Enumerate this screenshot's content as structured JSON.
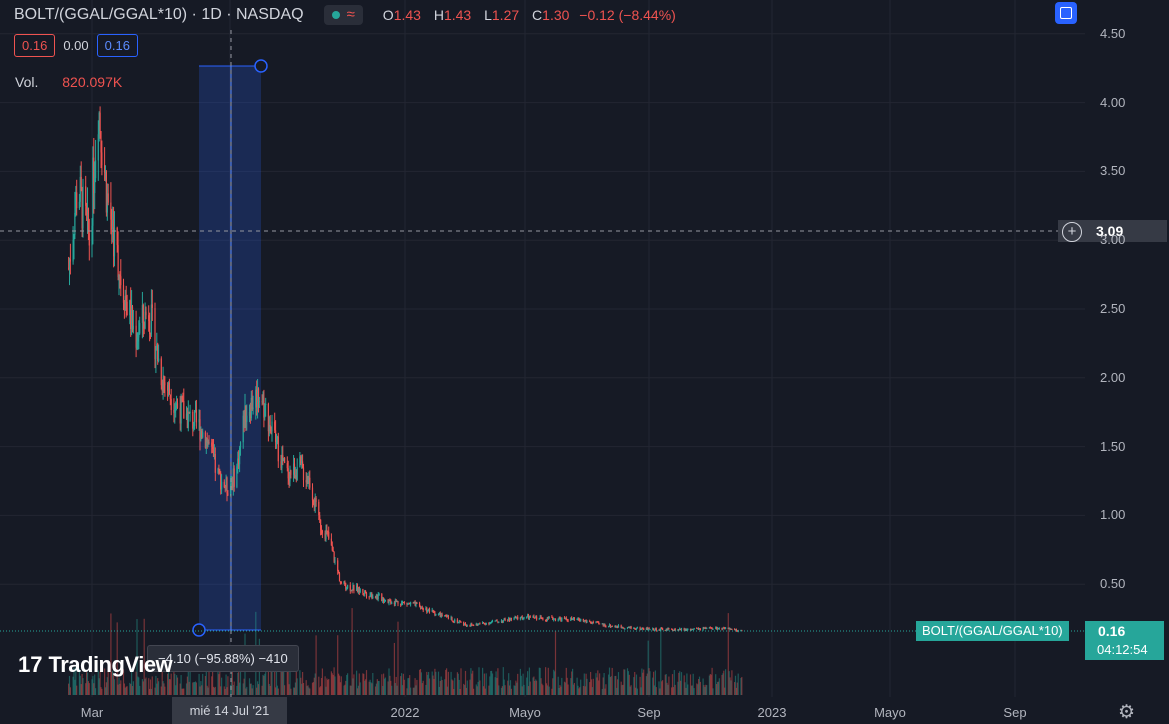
{
  "header": {
    "symbol": "BOLT/(GGAL/GGAL*10) · 1D · NASDAQ",
    "status_wave": "≈",
    "ohlc": [
      {
        "key": "O",
        "value": "1.43"
      },
      {
        "key": "H",
        "value": "1.43"
      },
      {
        "key": "L",
        "value": "1.27"
      },
      {
        "key": "C",
        "value": "1.30"
      },
      {
        "key": "",
        "value": "−0.12 (−8.44%)"
      }
    ]
  },
  "indicators": {
    "bid": "0.16",
    "spread": "0.00",
    "ask": "0.16",
    "volume_label": "Vol.",
    "volume_value": "820.097K"
  },
  "crosshair": {
    "price": "3.09",
    "date": "mié 14 Jul '21"
  },
  "measure": {
    "text": "−4.10 (−95.88%) −410"
  },
  "price_line": {
    "symbol_label": "BOLT/(GGAL/GGAL*10)",
    "last_price": "0.16",
    "countdown": "04:12:54"
  },
  "logo": {
    "mark": "17",
    "text": "TradingView"
  },
  "colors": {
    "background": "#161a25",
    "up": "#26a69a",
    "down": "#ef5350",
    "measure_fill": "#2962ff",
    "grid": "#232632"
  },
  "chart_data": {
    "type": "candlestick",
    "y_axis": {
      "ticks": [
        "4.50",
        "4.00",
        "3.50",
        "3.00",
        "2.50",
        "2.00",
        "1.50",
        "1.00",
        "0.50"
      ],
      "ylim": [
        0.0,
        4.55
      ]
    },
    "x_axis": {
      "ticks": [
        "Mar",
        "Jul",
        "2022",
        "Mayo",
        "Sep",
        "2023",
        "Mayo",
        "Sep"
      ]
    },
    "price_path": {
      "dates": [
        "2021-02-10",
        "2021-02-20",
        "2021-03-05",
        "2021-03-15",
        "2021-03-25",
        "2021-04-10",
        "2021-04-25",
        "2021-05-10",
        "2021-05-25",
        "2021-06-10",
        "2021-06-25",
        "2021-07-05",
        "2021-07-14",
        "2021-07-25",
        "2021-08-05",
        "2021-08-15",
        "2021-08-25",
        "2021-09-10",
        "2021-09-25",
        "2021-10-10",
        "2021-10-25",
        "2021-11-05",
        "2021-11-15",
        "2021-11-25",
        "2021-12-10",
        "2022-01-01",
        "2022-02-01",
        "2022-03-01",
        "2022-04-01",
        "2022-05-01",
        "2022-06-01",
        "2022-07-01",
        "2022-08-01",
        "2022-09-01",
        "2022-10-01",
        "2022-11-01",
        "2022-12-01",
        "2023-01-01",
        "2023-02-01",
        "2023-02-28"
      ],
      "close": [
        2.8,
        3.4,
        3.0,
        4.0,
        3.3,
        2.7,
        2.3,
        2.5,
        2.0,
        1.8,
        1.7,
        1.65,
        1.55,
        1.3,
        1.2,
        1.3,
        1.75,
        1.9,
        1.6,
        1.3,
        1.35,
        1.25,
        0.95,
        0.85,
        0.5,
        0.45,
        0.38,
        0.35,
        0.27,
        0.2,
        0.23,
        0.26,
        0.25,
        0.24,
        0.2,
        0.18,
        0.17,
        0.17,
        0.18,
        0.16
      ]
    }
  }
}
